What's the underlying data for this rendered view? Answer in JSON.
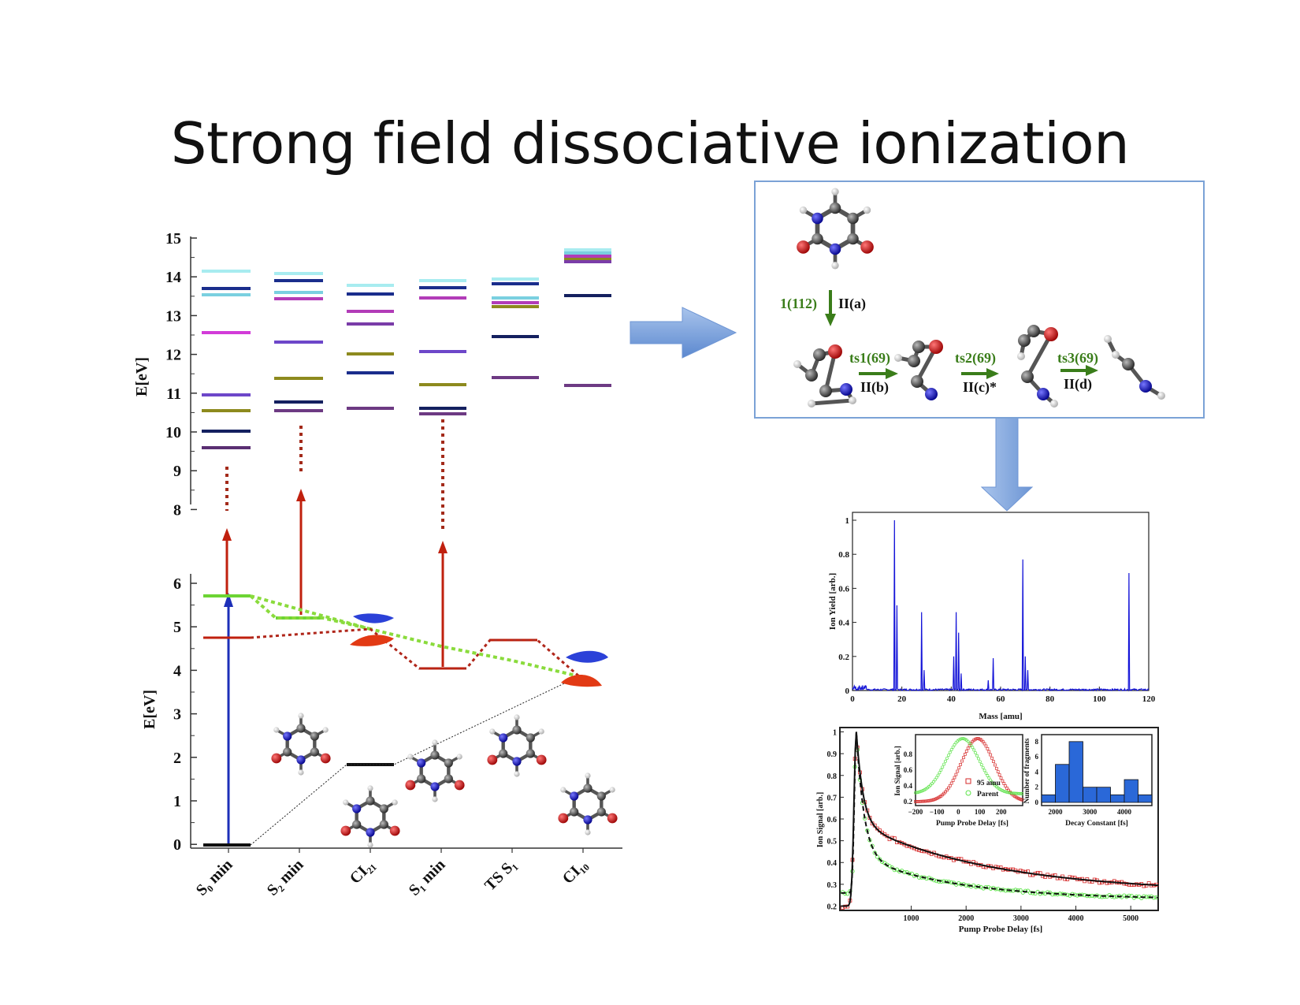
{
  "title": "Strong field dissociative ionization",
  "energy_diagram": {
    "upper_axis_label": "E[eV]",
    "lower_axis_label": "E[eV]",
    "upper_ticks": [
      "15",
      "14",
      "13",
      "12",
      "11",
      "10",
      "9",
      "8"
    ],
    "lower_ticks": [
      "6",
      "5",
      "4",
      "3",
      "2",
      "1",
      "0"
    ],
    "geometries": [
      "S₀ min",
      "S₂ min",
      "CI₂₁",
      "S₁ min",
      "TS S₁",
      "CI₁₀"
    ]
  },
  "reaction_scheme": {
    "step1_green": "1(112)",
    "step1_black": "II(a)",
    "steps": [
      {
        "green": "ts1(69)",
        "black": "II(b)"
      },
      {
        "green": "ts2(69)",
        "black": "II(c)*"
      },
      {
        "green": "ts3(69)",
        "black": "II(d)"
      }
    ]
  },
  "mass_spectrum": {
    "ylabel": "Ion Yield [arb.]",
    "xlabel": "Mass [amu]",
    "x_ticks": [
      "0",
      "20",
      "40",
      "60",
      "80",
      "100",
      "120"
    ],
    "y_ticks": [
      "0",
      "0.2",
      "0.4",
      "0.6",
      "0.8",
      "1"
    ]
  },
  "pump_probe": {
    "ylabel": "Ion Signal [arb.]",
    "xlabel": "Pump Probe Delay [fs]",
    "x_ticks": [
      "1000",
      "2000",
      "3000",
      "4000",
      "5000"
    ],
    "y_ticks": [
      "0.2",
      "0.3",
      "0.4",
      "0.5",
      "0.6",
      "0.7",
      "0.8",
      "0.9",
      "1"
    ],
    "inset1": {
      "ylabel": "Ion Signal [arb.]",
      "xlabel": "Pump Probe Delay [fs]",
      "x_ticks": [
        "−200",
        "−100",
        "0",
        "100",
        "200"
      ],
      "y_ticks": [
        "0.2",
        "0.4",
        "0.6",
        "0.8"
      ],
      "legend": [
        "95 amu",
        "Parent"
      ]
    },
    "inset2": {
      "ylabel": "Number of fragments",
      "xlabel": "Decay Constant [fs]",
      "x_ticks": [
        "2000",
        "3000",
        "4000"
      ],
      "y_ticks": [
        "0",
        "2",
        "4",
        "6",
        "8"
      ]
    }
  },
  "chart_data": [
    {
      "type": "line",
      "title": "",
      "xlabel": "Mass [amu]",
      "ylabel": "Ion Yield [arb.]",
      "xlim": [
        0,
        120
      ],
      "ylim": [
        0,
        1
      ],
      "x": [
        17,
        18,
        28,
        29,
        41,
        42,
        43,
        44,
        55,
        57,
        69,
        70,
        71,
        112
      ],
      "series": [
        {
          "values": [
            1.0,
            0.5,
            0.46,
            0.12,
            0.2,
            0.46,
            0.34,
            0.1,
            0.06,
            0.19,
            0.77,
            0.2,
            0.12,
            0.69
          ]
        }
      ]
    },
    {
      "type": "bar",
      "title": "",
      "xlabel": "Decay Constant [fs]",
      "ylabel": "Number of fragments",
      "categories": [
        "1800",
        "2200",
        "2600",
        "3000",
        "3400",
        "3800",
        "4200",
        "4600"
      ],
      "values": [
        1,
        5,
        8,
        2,
        2,
        1,
        3,
        1
      ]
    }
  ]
}
